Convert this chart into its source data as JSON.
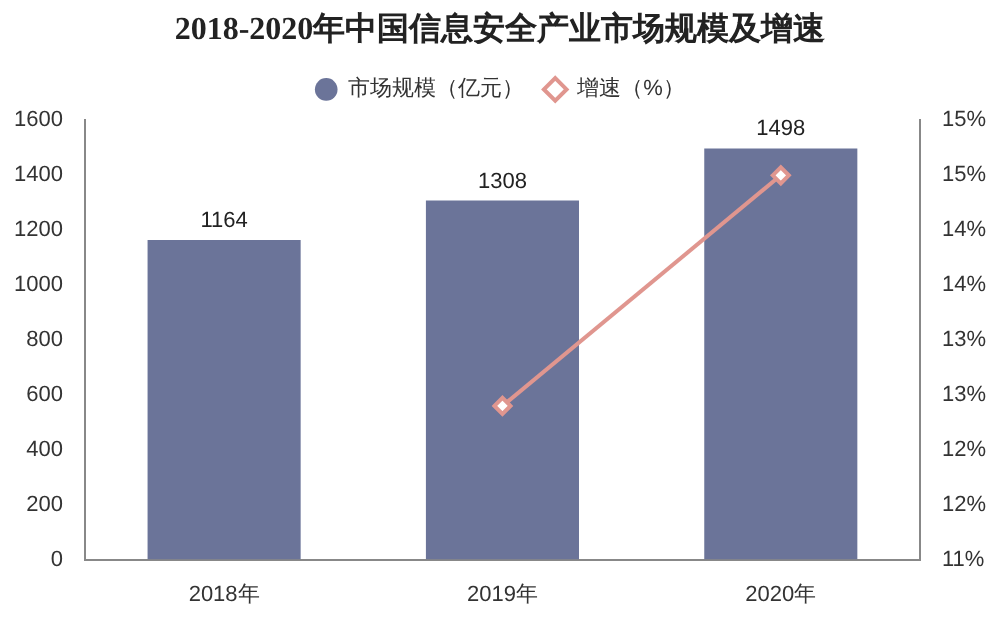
{
  "chart_data": {
    "type": "bar",
    "title": "2018-2020年中国信息安全产业市场规模及增速",
    "categories": [
      "2018年",
      "2019年",
      "2020年"
    ],
    "series": [
      {
        "name": "市场规模（亿元）",
        "color": "#6b7499",
        "values": [
          1164,
          1308,
          1498
        ],
        "value_labels": [
          "1164",
          "1308",
          "1498"
        ]
      },
      {
        "name": "增速（%）",
        "type": "line",
        "axis": "y2",
        "color": "#e0968f",
        "values": [
          null,
          12.4,
          14.5
        ],
        "marker": "diamond"
      }
    ],
    "ylim": [
      0,
      1600
    ],
    "yticks": [
      0,
      200,
      400,
      600,
      800,
      1000,
      1200,
      1400,
      1600
    ],
    "y2lim": [
      11,
      15
    ],
    "y2ticks": [
      {
        "value": 11,
        "label": "11%"
      },
      {
        "value": 11.5,
        "label": "12%"
      },
      {
        "value": 12,
        "label": "12%"
      },
      {
        "value": 12.5,
        "label": "13%"
      },
      {
        "value": 13,
        "label": "13%"
      },
      {
        "value": 13.5,
        "label": "14%"
      },
      {
        "value": 14,
        "label": "14%"
      },
      {
        "value": 14.5,
        "label": "15%"
      },
      {
        "value": 15,
        "label": "15%"
      }
    ],
    "legend": "top",
    "grid": false
  }
}
